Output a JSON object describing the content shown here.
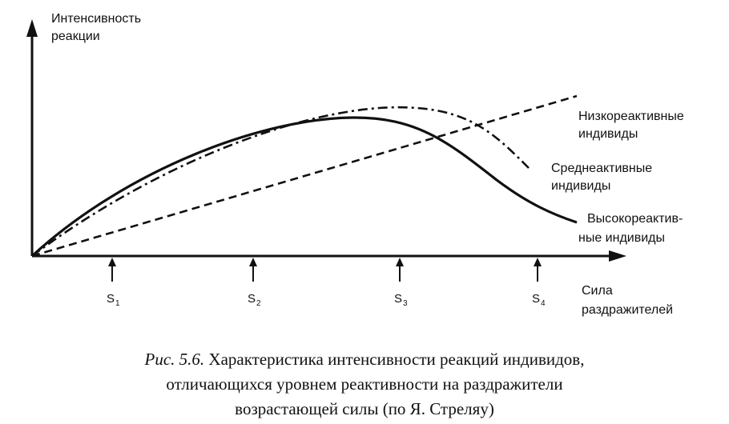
{
  "y_axis_label": [
    "Интенсивность",
    "реакции"
  ],
  "x_axis_label": [
    "Сила",
    "раздражителей"
  ],
  "ticks": [
    {
      "base": "S",
      "sub": "1"
    },
    {
      "base": "S",
      "sub": "2"
    },
    {
      "base": "S",
      "sub": "3"
    },
    {
      "base": "S",
      "sub": "4"
    }
  ],
  "curves": {
    "low": {
      "label": [
        "Низкореактивные",
        "индивиды"
      ],
      "style": "dashed"
    },
    "medium": {
      "label": [
        "Среднеактивные",
        "индивиды"
      ],
      "style": "dash-dot"
    },
    "high": {
      "label": [
        "Высокореактив-",
        "ные индивиды"
      ],
      "style": "solid"
    }
  },
  "caption": {
    "figure_no": "Рис. 5.6.",
    "line1_rest": "Характеристика интенсивности реакций индивидов,",
    "line2": "отличающихся уровнем реактивности на раздражители",
    "line3": "возрастающей силы (по Я. Стреляу)"
  },
  "colors": {
    "ink": "#111111",
    "background": "#ffffff"
  }
}
